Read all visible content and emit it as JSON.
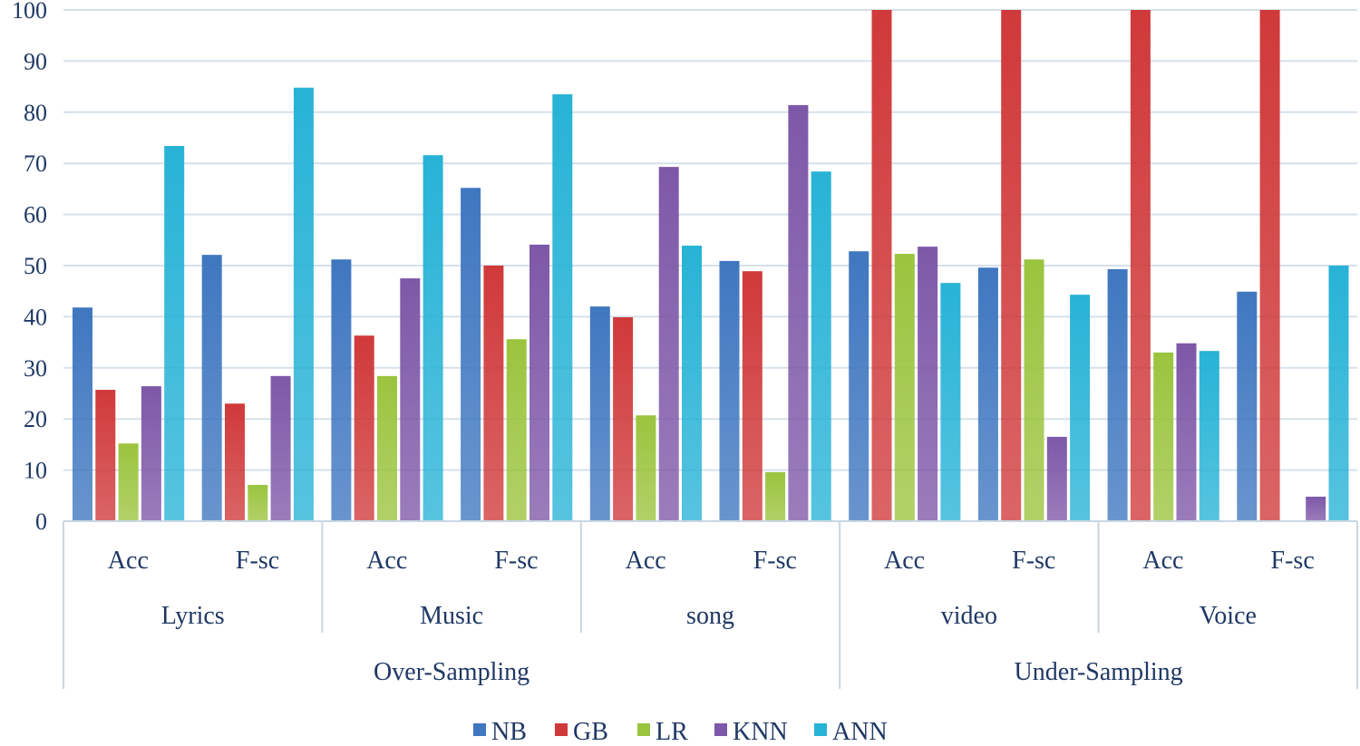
{
  "chart_data": {
    "type": "bar",
    "ylim": [
      0,
      100
    ],
    "yticks": [
      0,
      10,
      20,
      30,
      40,
      50,
      60,
      70,
      80,
      90,
      100
    ],
    "grid": true,
    "legend_position": "bottom",
    "categories": [
      {
        "metric": "Acc",
        "dataset": "Lyrics",
        "sampling": "Over-Sampling"
      },
      {
        "metric": "F-sc",
        "dataset": "Lyrics",
        "sampling": "Over-Sampling"
      },
      {
        "metric": "Acc",
        "dataset": "Music",
        "sampling": "Over-Sampling"
      },
      {
        "metric": "F-sc",
        "dataset": "Music",
        "sampling": "Over-Sampling"
      },
      {
        "metric": "Acc",
        "dataset": "song",
        "sampling": "Over-Sampling"
      },
      {
        "metric": "F-sc",
        "dataset": "song",
        "sampling": "Over-Sampling"
      },
      {
        "metric": "Acc",
        "dataset": "video",
        "sampling": "Under-Sampling"
      },
      {
        "metric": "F-sc",
        "dataset": "video",
        "sampling": "Under-Sampling"
      },
      {
        "metric": "Acc",
        "dataset": "Voice",
        "sampling": "Under-Sampling"
      },
      {
        "metric": "F-sc",
        "dataset": "Voice",
        "sampling": "Under-Sampling"
      }
    ],
    "datasets": [
      "Lyrics",
      "Music",
      "song",
      "video",
      "Voice"
    ],
    "samplings": [
      "Over-Sampling",
      "Under-Sampling"
    ],
    "series": [
      {
        "name": "NB",
        "color": "#3f77c0",
        "values": [
          41.8,
          52.1,
          51.2,
          65.2,
          42.0,
          50.9,
          52.8,
          49.6,
          49.3,
          44.9
        ]
      },
      {
        "name": "GB",
        "color": "#d0393a",
        "values": [
          25.7,
          23.0,
          36.3,
          50.0,
          39.9,
          48.9,
          100,
          100,
          100,
          100
        ]
      },
      {
        "name": "LR",
        "color": "#9bc43e",
        "values": [
          15.2,
          7.1,
          28.4,
          35.6,
          20.7,
          9.6,
          52.3,
          51.2,
          33.0,
          0
        ]
      },
      {
        "name": "KNN",
        "color": "#7e58a8",
        "values": [
          26.4,
          28.4,
          47.5,
          54.1,
          69.3,
          81.4,
          53.7,
          16.5,
          34.8,
          4.8
        ]
      },
      {
        "name": "ANN",
        "color": "#27b3d6",
        "values": [
          73.4,
          84.8,
          71.6,
          83.5,
          53.9,
          68.4,
          46.6,
          44.3,
          33.3,
          50.0
        ]
      }
    ]
  }
}
